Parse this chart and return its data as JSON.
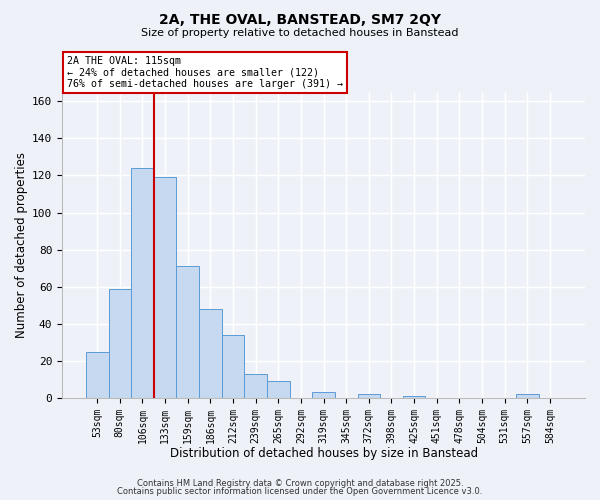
{
  "title": "2A, THE OVAL, BANSTEAD, SM7 2QY",
  "subtitle": "Size of property relative to detached houses in Banstead",
  "xlabel": "Distribution of detached houses by size in Banstead",
  "ylabel": "Number of detached properties",
  "bar_labels": [
    "53sqm",
    "80sqm",
    "106sqm",
    "133sqm",
    "159sqm",
    "186sqm",
    "212sqm",
    "239sqm",
    "265sqm",
    "292sqm",
    "319sqm",
    "345sqm",
    "372sqm",
    "398sqm",
    "425sqm",
    "451sqm",
    "478sqm",
    "504sqm",
    "531sqm",
    "557sqm",
    "584sqm"
  ],
  "bar_values": [
    25,
    59,
    124,
    119,
    71,
    48,
    34,
    13,
    9,
    0,
    3,
    0,
    2,
    0,
    1,
    0,
    0,
    0,
    0,
    2,
    0
  ],
  "bar_color": "#c6d9f0",
  "bar_edge_color": "#5b9bd5",
  "vline_color": "#cc0000",
  "vline_position": 2.5,
  "ylim": [
    0,
    165
  ],
  "yticks": [
    0,
    20,
    40,
    60,
    80,
    100,
    120,
    140,
    160
  ],
  "annotation_box_text": "2A THE OVAL: 115sqm\n← 24% of detached houses are smaller (122)\n76% of semi-detached houses are larger (391) →",
  "bg_color": "#eef2f8",
  "grid_color": "#ffffff",
  "footer_line1": "Contains HM Land Registry data © Crown copyright and database right 2025.",
  "footer_line2": "Contains public sector information licensed under the Open Government Licence v3.0."
}
